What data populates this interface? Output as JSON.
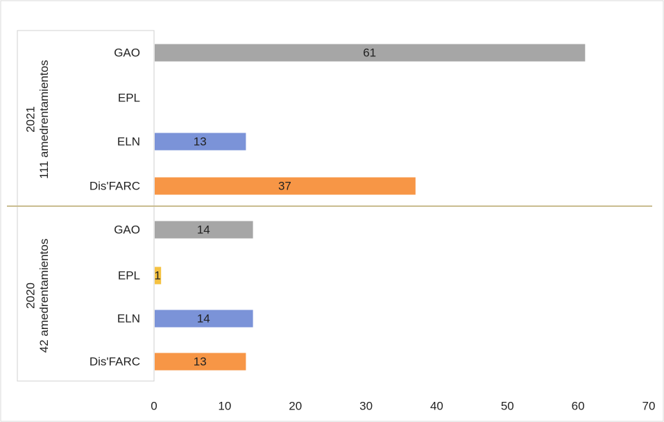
{
  "chart_data": {
    "type": "bar",
    "orientation": "horizontal",
    "xlim": [
      0,
      70
    ],
    "x_ticks": [
      0,
      10,
      20,
      30,
      40,
      50,
      60,
      70
    ],
    "grid": false,
    "colors": {
      "Dis'FARC": "#f79646",
      "ELN": "#7b93d8",
      "EPL": "#f5c242",
      "GAO": "#a6a6a6"
    },
    "groups": [
      {
        "label_line1": "2021",
        "label_line2": "111 amedrentamientos",
        "bars": [
          {
            "category": "GAO",
            "value": 61,
            "label": "61"
          },
          {
            "category": "EPL",
            "value": 0,
            "label": ""
          },
          {
            "category": "ELN",
            "value": 13,
            "label": "13"
          },
          {
            "category": "Dis'FARC",
            "value": 37,
            "label": "37"
          }
        ]
      },
      {
        "label_line1": "2020",
        "label_line2": "42 amedrentamientos",
        "bars": [
          {
            "category": "GAO",
            "value": 14,
            "label": "14"
          },
          {
            "category": "EPL",
            "value": 1,
            "label": "1"
          },
          {
            "category": "ELN",
            "value": 14,
            "label": "14"
          },
          {
            "category": "Dis'FARC",
            "value": 13,
            "label": "13"
          }
        ]
      }
    ]
  }
}
